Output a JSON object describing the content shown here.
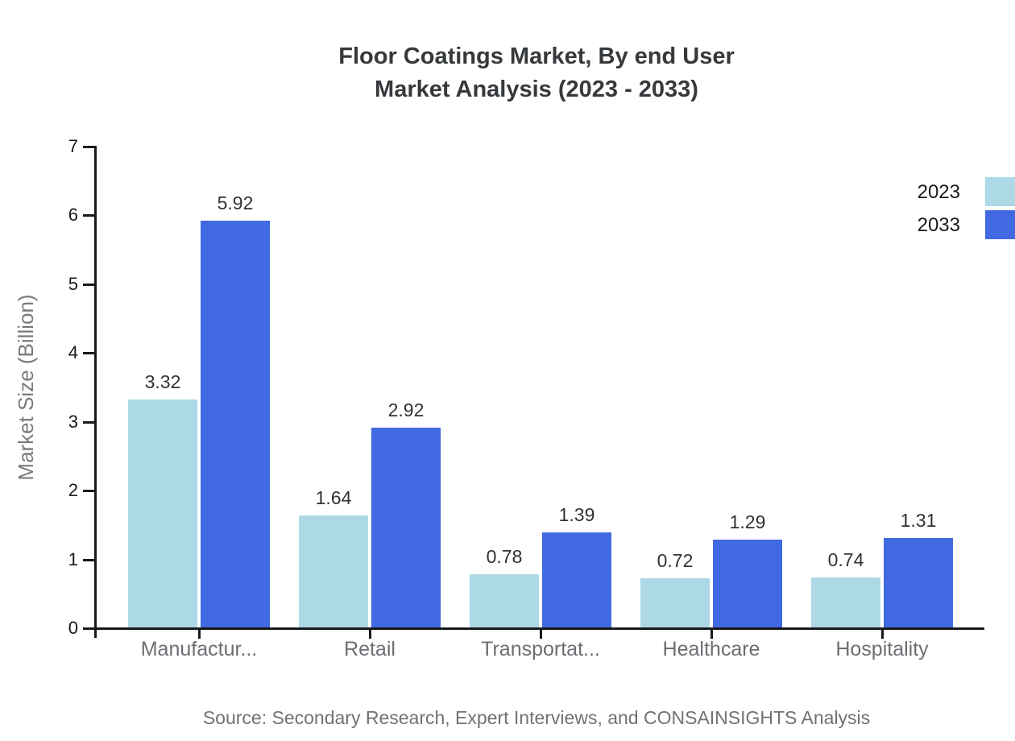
{
  "header": {
    "title_line1": "Floor Coatings Market, By end User",
    "title_line2": "Market Analysis (2023 - 2033)"
  },
  "footer": {
    "source": "Source: Secondary Research, Expert Interviews, and CONSAINSIGHTS Analysis"
  },
  "colors": {
    "series_2023": "#add8e6",
    "series_2033": "#4169e1",
    "axis": "#17191b",
    "title_text": "#36393c",
    "category_text": "#6b6f73",
    "axis_title_text": "#7a7a7a",
    "source_text": "#6f7276"
  },
  "chart_data": {
    "type": "bar",
    "title": "Floor Coatings Market, By end User Market Analysis (2023 - 2033)",
    "categories": [
      "Manufactur...",
      "Retail",
      "Transportat...",
      "Healthcare",
      "Hospitality"
    ],
    "series": [
      {
        "name": "2023",
        "color": "#add8e6",
        "values": [
          3.32,
          1.64,
          0.78,
          0.72,
          0.74
        ]
      },
      {
        "name": "2033",
        "color": "#4169e1",
        "values": [
          5.92,
          2.92,
          1.39,
          1.29,
          1.31
        ]
      }
    ],
    "xlabel": "",
    "ylabel": "Market Size (Billion)",
    "ylim": [
      0,
      7
    ],
    "yticks": [
      0,
      1,
      2,
      3,
      4,
      5,
      6,
      7
    ],
    "grid": false,
    "legend_position": "top-right",
    "value_labels": true
  }
}
